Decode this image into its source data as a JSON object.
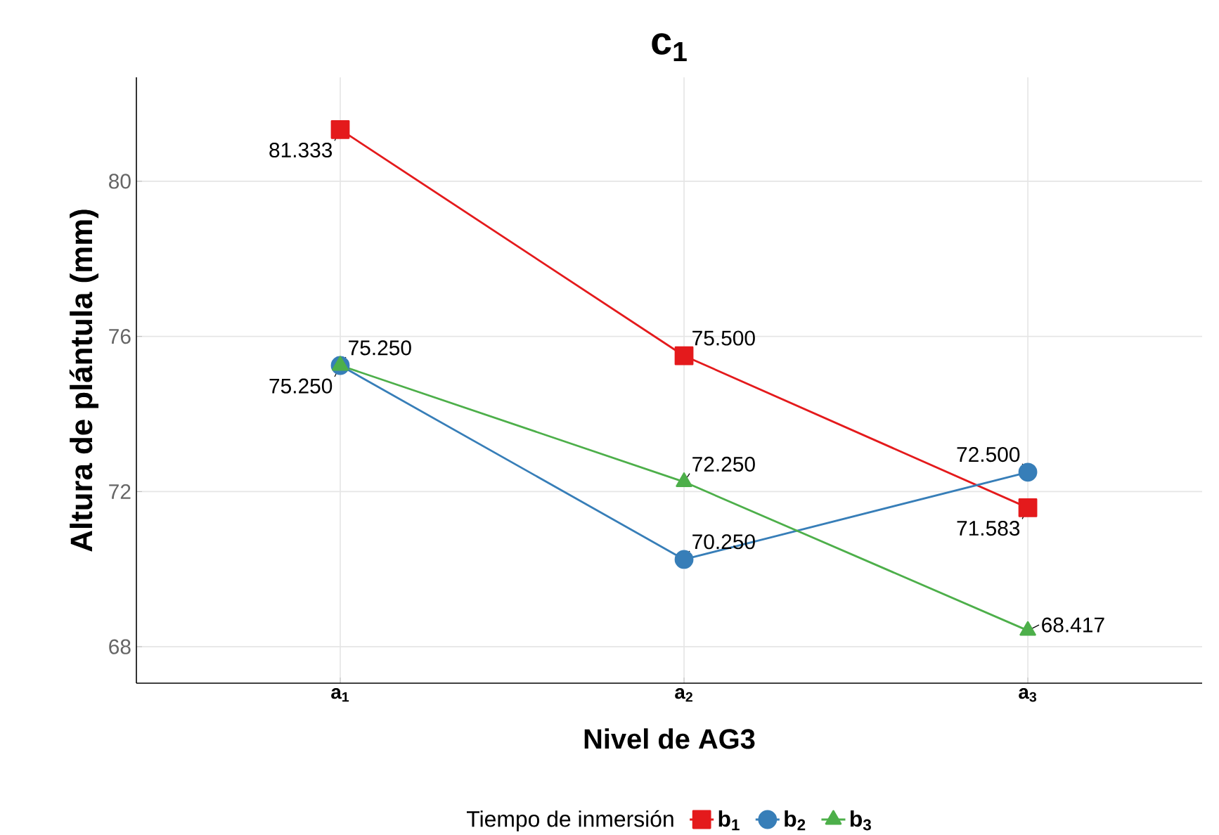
{
  "chart_data": {
    "type": "line",
    "title": "c$_{1}$",
    "xlabel": "Nivel de AG3",
    "ylabel": "Altura de plántula (mm)",
    "legend_title": "Tiempo de inmersión",
    "categories": [
      "a$_{1}$",
      "a$_{2}$",
      "a$_{3}$"
    ],
    "series": [
      {
        "name": "b$_{1}$",
        "color": "#e41a1c",
        "marker": "square",
        "values": [
          81.333,
          75.5,
          71.583
        ],
        "value_labels": [
          "81.333",
          "75.500",
          "71.583"
        ]
      },
      {
        "name": "b$_{2}$",
        "color": "#377eb8",
        "marker": "circle",
        "values": [
          75.25,
          70.25,
          72.5
        ],
        "value_labels": [
          "75.250",
          "70.250",
          "72.500"
        ]
      },
      {
        "name": "b$_{3}$",
        "color": "#4daf4a",
        "marker": "triangle",
        "values": [
          75.25,
          72.25,
          68.417
        ],
        "value_labels": [
          "75.250",
          "72.250",
          "68.417"
        ]
      }
    ],
    "ylim": [
      67.06,
      82.68
    ],
    "yticks": [
      68,
      72,
      76,
      80
    ],
    "grid": true,
    "legend": "bottom",
    "line_style": "solid"
  }
}
